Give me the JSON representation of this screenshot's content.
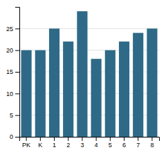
{
  "chart_data": {
    "type": "bar",
    "categories": [
      "PK",
      "K",
      "1",
      "2",
      "3",
      "4",
      "5",
      "6",
      "7",
      "8"
    ],
    "values": [
      20,
      20,
      25,
      22,
      29,
      18,
      20,
      22,
      24,
      25
    ],
    "color": "#2e6a87",
    "ylim": [
      0,
      30
    ],
    "yticks": [
      0,
      5,
      10,
      15,
      20,
      25
    ],
    "grid": true
  }
}
